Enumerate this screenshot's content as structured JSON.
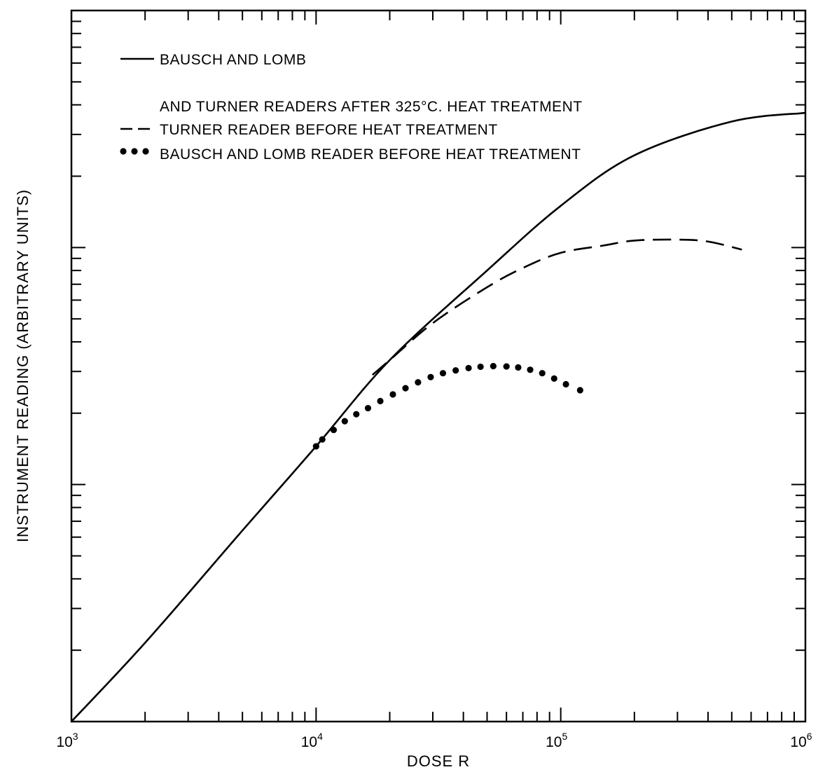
{
  "chart_data": {
    "type": "line",
    "title": "",
    "xlabel": "DOSE R",
    "ylabel": "INSTRUMENT READING (ARBITRARY UNITS)",
    "x_scale": "log",
    "y_scale": "log",
    "xlim": [
      1000,
      1000000
    ],
    "ylim": [
      1,
      1000
    ],
    "x_tick_labels": [
      {
        "value": 1000,
        "base": "10",
        "exp": "3"
      },
      {
        "value": 10000,
        "base": "10",
        "exp": "4"
      },
      {
        "value": 100000,
        "base": "10",
        "exp": "5"
      },
      {
        "value": 1000000,
        "base": "10",
        "exp": "6"
      }
    ],
    "legend": {
      "placement": "top-left",
      "entries": [
        {
          "lines": [
            "BAUSCH AND LOMB",
            "AND TURNER READERS AFTER 325°C. HEAT TREATMENT"
          ],
          "style": "solid"
        },
        {
          "lines": [
            "TURNER READER BEFORE HEAT TREATMENT"
          ],
          "style": "dashed"
        },
        {
          "lines": [
            "BAUSCH AND LOMB READER BEFORE HEAT TREATMENT"
          ],
          "style": "dotted"
        }
      ]
    },
    "series": [
      {
        "style": "solid",
        "x": [
          1000,
          2000,
          5000,
          10000,
          20000,
          50000,
          100000,
          200000,
          500000,
          1000000
        ],
        "y": [
          1,
          2.15,
          6.4,
          14.5,
          33.5,
          80,
          150,
          245,
          340,
          370
        ]
      },
      {
        "style": "dashed",
        "x": [
          17000,
          20000,
          30000,
          50000,
          70000,
          100000,
          150000,
          200000,
          300000,
          400000,
          550000
        ],
        "y": [
          29,
          33.5,
          48,
          68,
          82,
          95,
          102,
          107,
          108,
          106,
          98
        ]
      },
      {
        "style": "dotted",
        "x": [
          10000,
          10600,
          11800,
          13100,
          14600,
          16300,
          18300,
          20600,
          23200,
          26100,
          29400,
          33000,
          37200,
          42000,
          47000,
          53000,
          60000,
          67000,
          75000,
          84000,
          94000,
          105000,
          120000
        ],
        "y": [
          14.5,
          15.5,
          17,
          18.5,
          19.8,
          21,
          22.5,
          24,
          25.5,
          27,
          28.4,
          29.5,
          30.3,
          31,
          31.4,
          31.6,
          31.5,
          31.2,
          30.5,
          29.5,
          28,
          26.5,
          25
        ]
      }
    ]
  }
}
